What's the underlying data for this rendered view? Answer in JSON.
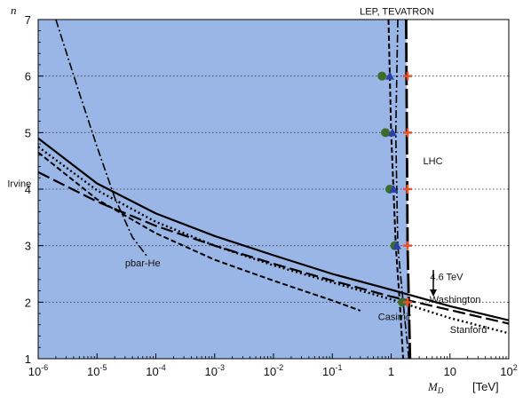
{
  "chart_data": {
    "type": "line",
    "title": "",
    "xlabel": "M",
    "xlabel_sub": "D",
    "xunit": "[TeV]",
    "ylabel": "n",
    "x_scale": "log",
    "xlim": [
      1e-06,
      100
    ],
    "ylim": [
      1,
      7
    ],
    "x_ticks": [
      1e-06,
      1e-05,
      0.0001,
      0.001,
      0.01,
      0.1,
      1,
      10,
      100
    ],
    "x_tick_labels": [
      {
        "base": "10",
        "exp": "-6"
      },
      {
        "base": "10",
        "exp": "-5"
      },
      {
        "base": "10",
        "exp": "-4"
      },
      {
        "base": "10",
        "exp": "-3"
      },
      {
        "base": "10",
        "exp": "-2"
      },
      {
        "base": "10",
        "exp": "-1"
      },
      {
        "base": "1",
        "exp": ""
      },
      {
        "base": "10",
        "exp": ""
      },
      {
        "base": "10",
        "exp": "2"
      }
    ],
    "y_ticks": [
      1,
      2,
      3,
      4,
      5,
      6,
      7
    ],
    "y_tick_labels": [
      "1",
      "2",
      "3",
      "4",
      "5",
      "6",
      "7"
    ],
    "grid": "horizontal dotted at n = 2..6",
    "excluded_region_color": "#9ab6e6",
    "series": [
      {
        "style": "solid",
        "points": [
          [
            1e-06,
            4.9
          ],
          [
            1e-05,
            4.1
          ],
          [
            0.0001,
            3.57
          ],
          [
            0.001,
            3.17
          ],
          [
            0.01,
            2.83
          ],
          [
            0.1,
            2.5
          ],
          [
            1,
            2.22
          ],
          [
            10,
            1.93
          ],
          [
            100,
            1.68
          ]
        ]
      },
      {
        "style": "long-dash",
        "points": [
          [
            1e-06,
            4.3
          ],
          [
            1e-05,
            3.78
          ],
          [
            0.0001,
            3.35
          ],
          [
            0.001,
            3.0
          ],
          [
            0.01,
            2.68
          ],
          [
            0.1,
            2.38
          ],
          [
            1,
            2.1
          ],
          [
            10,
            1.86
          ],
          [
            100,
            1.62
          ]
        ]
      },
      {
        "style": "dotted",
        "points": [
          [
            1e-06,
            4.75
          ],
          [
            1e-05,
            3.98
          ],
          [
            0.0001,
            3.42
          ],
          [
            0.001,
            3.0
          ],
          [
            0.01,
            2.65
          ],
          [
            0.1,
            2.35
          ],
          [
            1,
            2.05
          ],
          [
            10,
            1.72
          ],
          [
            100,
            1.45
          ]
        ]
      },
      {
        "style": "dashed",
        "points": [
          [
            1e-06,
            4.65
          ],
          [
            1e-05,
            3.82
          ],
          [
            0.0001,
            3.22
          ],
          [
            0.001,
            2.75
          ],
          [
            0.01,
            2.38
          ],
          [
            0.1,
            2.03
          ],
          [
            0.3,
            1.85
          ]
        ]
      },
      {
        "style": "dash-dot",
        "points": [
          [
            2e-06,
            7.0
          ],
          [
            5e-06,
            5.7
          ],
          [
            1e-05,
            4.75
          ],
          [
            2e-05,
            3.85
          ],
          [
            4e-05,
            3.15
          ],
          [
            7e-05,
            2.82
          ]
        ]
      },
      {
        "style": "dashed",
        "points": [
          [
            0.9,
            7.0
          ],
          [
            1.0,
            5.0
          ],
          [
            1.2,
            3.0
          ],
          [
            1.4,
            2.0
          ],
          [
            1.6,
            1.0
          ]
        ]
      },
      {
        "style": "dash-dot",
        "points": [
          [
            1.3,
            7.0
          ],
          [
            1.2,
            5.0
          ],
          [
            1.3,
            3.0
          ],
          [
            1.6,
            2.0
          ],
          [
            2.0,
            1.0
          ]
        ]
      },
      {
        "style": "thick-long-dash",
        "points": [
          [
            1.8,
            7.0
          ],
          [
            1.85,
            5.0
          ],
          [
            1.9,
            3.0
          ],
          [
            2.0,
            2.0
          ],
          [
            2.1,
            1.0
          ]
        ]
      }
    ],
    "markers": [
      {
        "shape": "circle",
        "color": "#3d6b2a",
        "points": [
          [
            0.7,
            6.0
          ],
          [
            0.8,
            5.0
          ],
          [
            0.95,
            4.0
          ],
          [
            1.15,
            3.0
          ],
          [
            1.55,
            2.0
          ]
        ]
      },
      {
        "shape": "triangle",
        "color": "#2a3fa8",
        "points": [
          [
            0.95,
            6.0
          ],
          [
            1.05,
            5.0
          ],
          [
            1.1,
            4.0
          ],
          [
            1.25,
            3.0
          ]
        ]
      },
      {
        "shape": "cross",
        "color": "#e8502a",
        "points": [
          [
            1.9,
            6.0
          ],
          [
            1.9,
            5.0
          ],
          [
            1.9,
            4.0
          ],
          [
            1.9,
            3.0
          ],
          [
            1.9,
            2.0
          ]
        ]
      }
    ],
    "annotations": [
      {
        "text": "LEP, TEVATRON",
        "x": 1.25,
        "y": 7.15
      },
      {
        "text": "LHC",
        "x": 3.5,
        "y": 4.5
      },
      {
        "text": "Irvine",
        "x": 3e-07,
        "y": 4.1
      },
      {
        "text": "pbar-He",
        "x": 3e-05,
        "y": 2.7
      },
      {
        "text": "Casimir",
        "x": 0.6,
        "y": 1.75
      },
      {
        "text": "Stanford",
        "x": 10,
        "y": 1.52
      },
      {
        "text": "Washington",
        "x": 4.5,
        "y": 2.05
      },
      {
        "text": "4.6 TeV",
        "x": 4.6,
        "y": 2.45
      }
    ]
  }
}
